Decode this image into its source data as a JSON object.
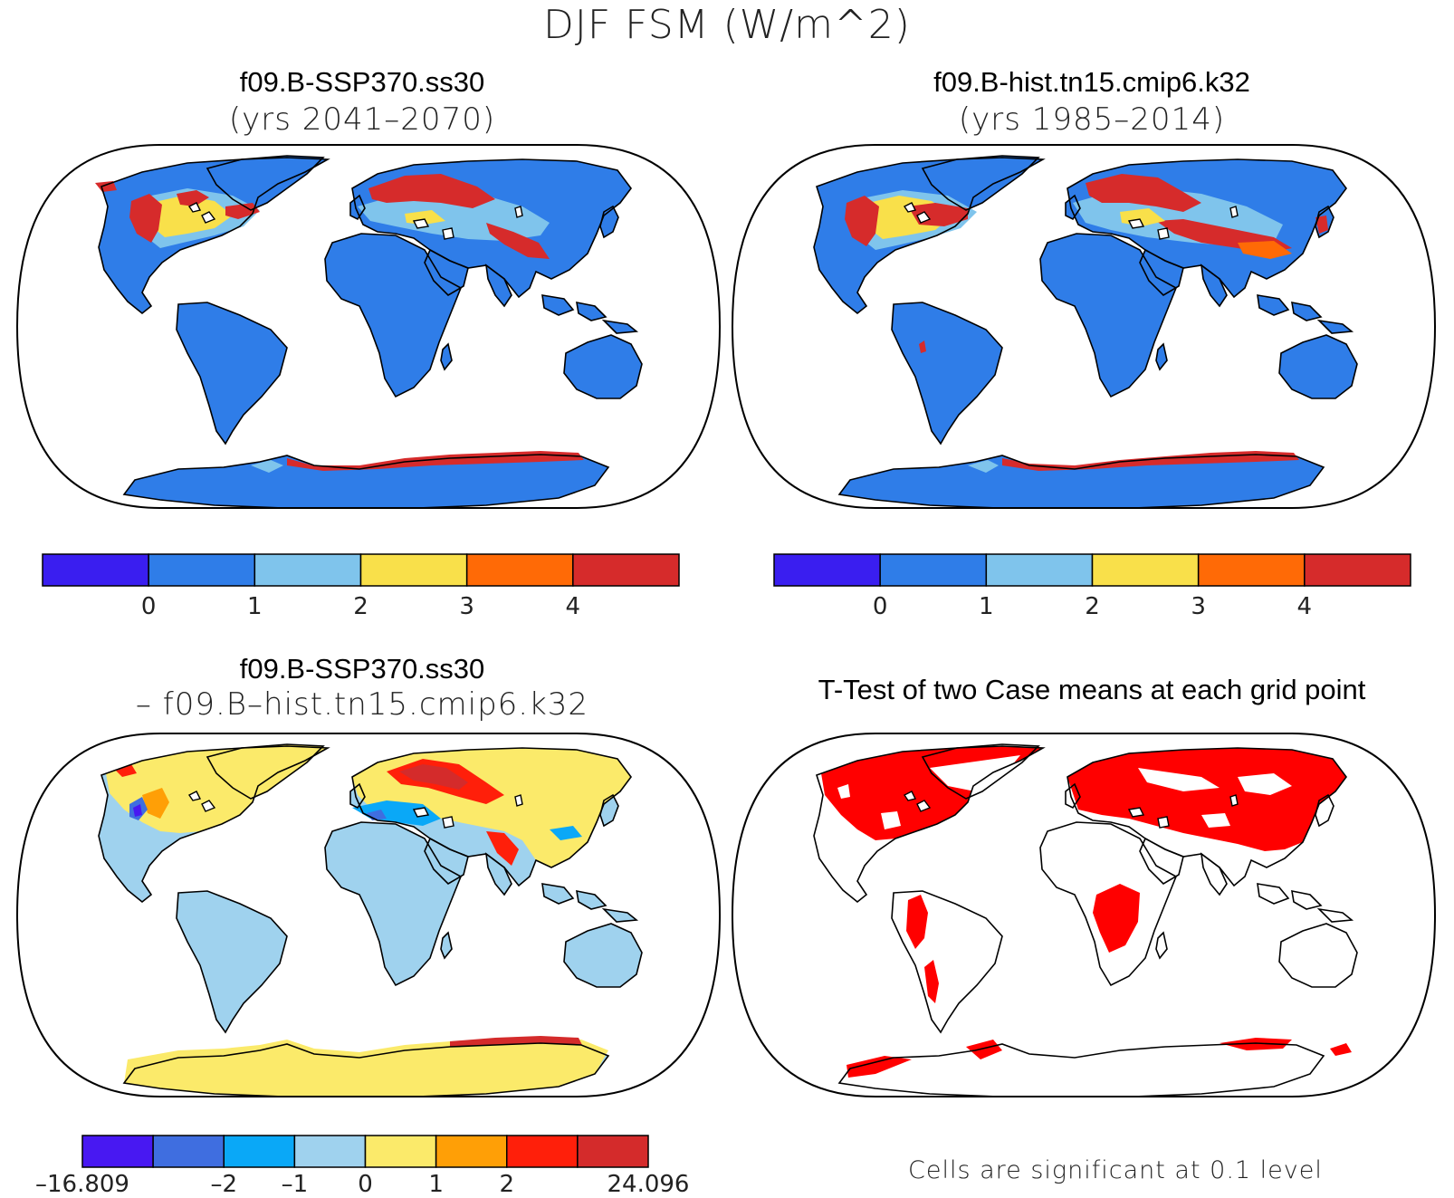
{
  "figure": {
    "title": "DJF FSM (W/m^2)"
  },
  "panels": {
    "future": {
      "title": "f09.B-SSP370.ss30",
      "subtitle": "(yrs 2041–2070)"
    },
    "hist": {
      "title": "f09.B-hist.tn15.cmip6.k32",
      "subtitle": "(yrs 1985–2014)"
    },
    "diff": {
      "title": "f09.B-SSP370.ss30",
      "subtitle": "– f09.B–hist.tn15.cmip6.k32"
    },
    "ttest": {
      "title": "T-Test of two Case means at each grid point",
      "note": "Cells are significant at 0.1 level"
    }
  },
  "colorbars": {
    "field": {
      "colors": [
        "#3a1ef0",
        "#2f7de8",
        "#7fc4ec",
        "#f9e04a",
        "#ff6a06",
        "#d62b2b"
      ],
      "labels": [
        "0",
        "1",
        "2",
        "3",
        "4"
      ]
    },
    "diff": {
      "colors": [
        "#4818f2",
        "#3f6ee0",
        "#0aa8f7",
        "#9fd2ee",
        "#fbea6a",
        "#ff9f06",
        "#ff1f0a",
        "#d42b2b"
      ],
      "labels": [
        "–16.809",
        "–2",
        "–1",
        "0",
        "1",
        "2",
        "24.096"
      ]
    }
  },
  "map_colors": {
    "ocean": "#ffffff",
    "land_field": "#2f7de8",
    "land_diff": "#9fd2ee",
    "significant": "#ff0000"
  }
}
